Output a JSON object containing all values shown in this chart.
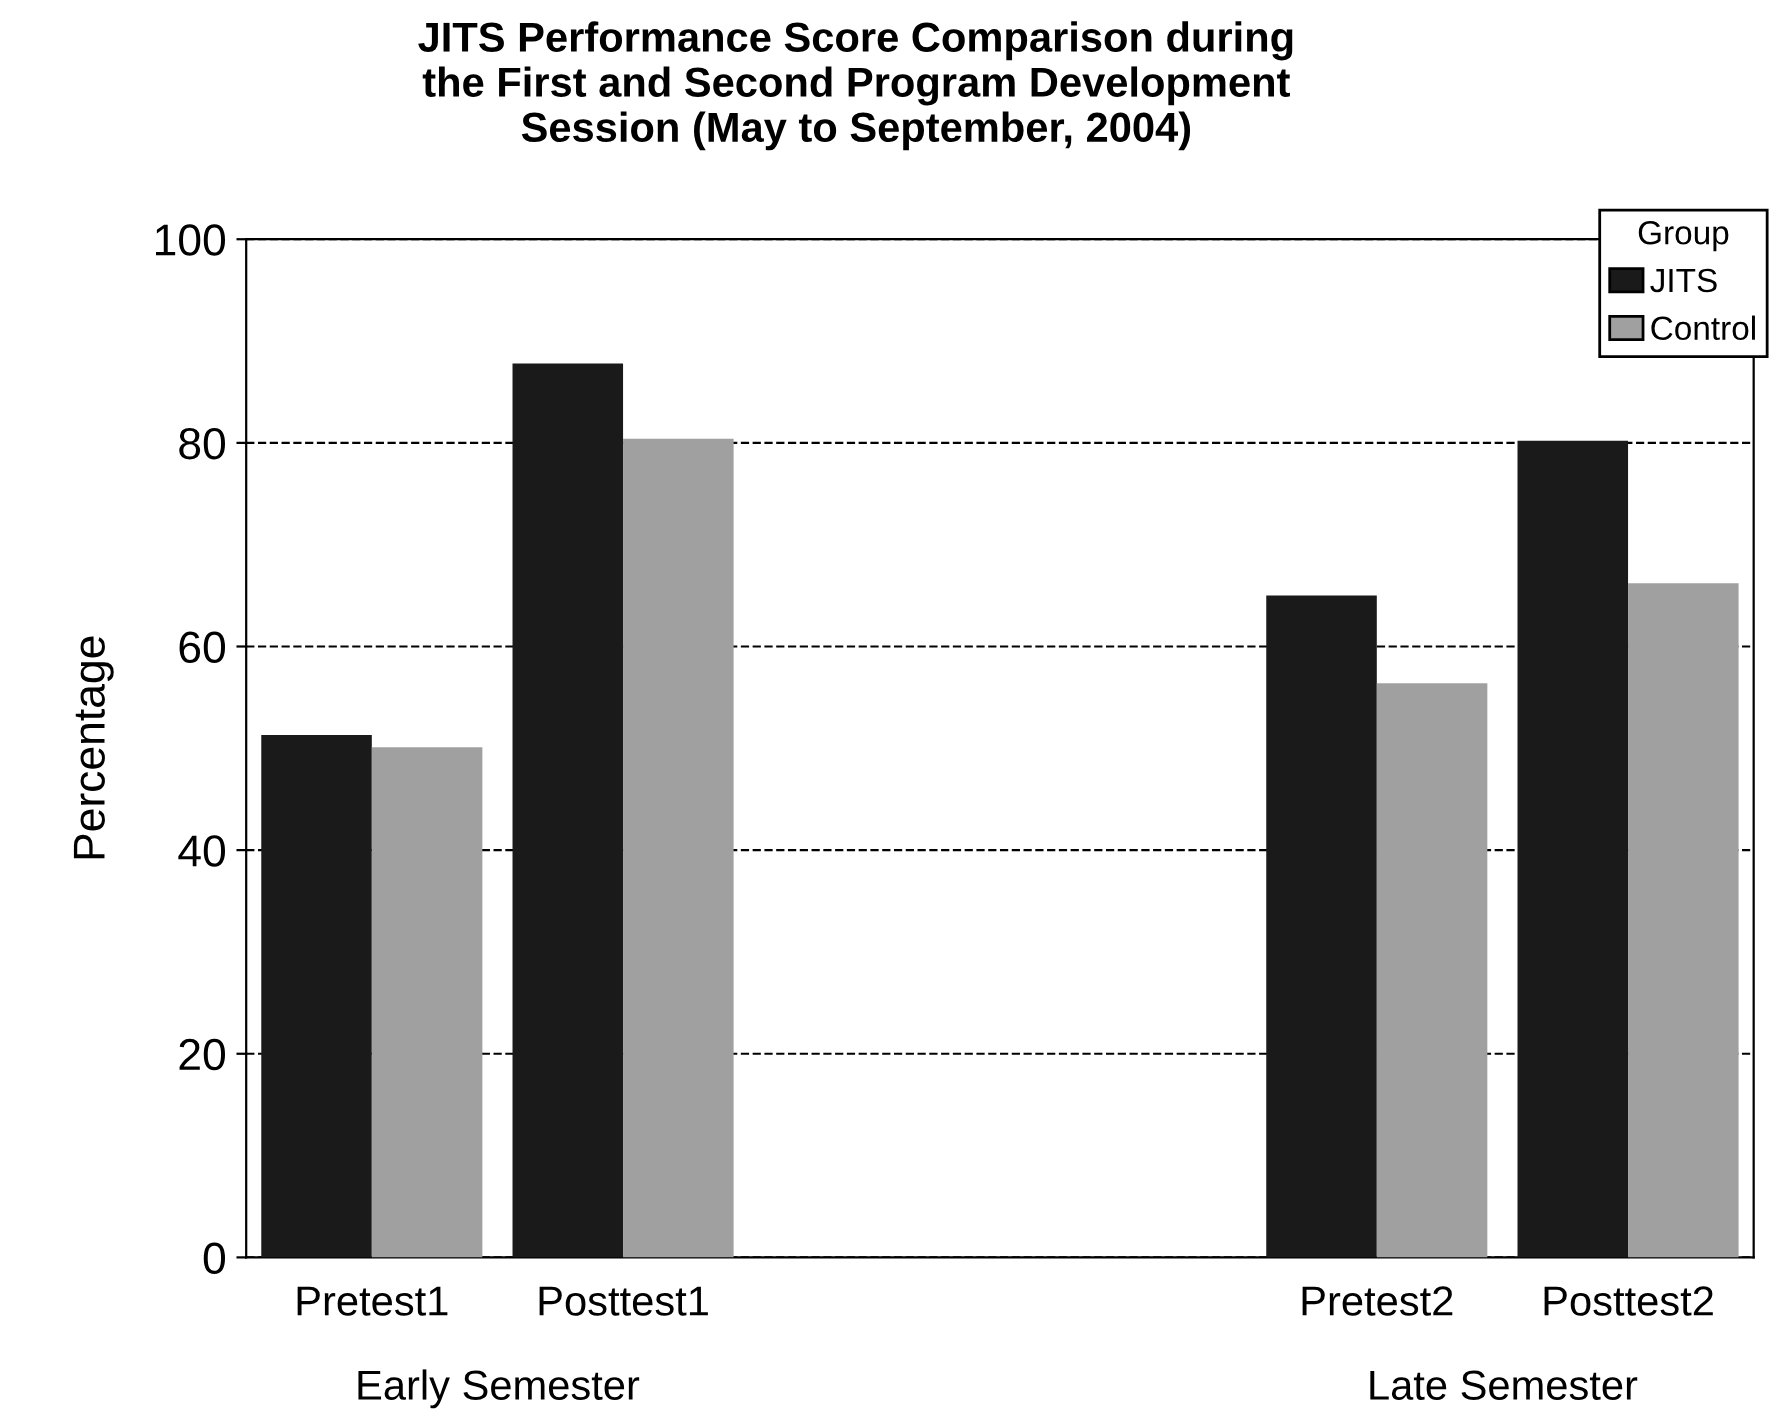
{
  "chart_data": {
    "type": "bar",
    "title": "JITS Performance Score Comparison during\nthe First and Second Program Development\nSession (May to September, 2004)",
    "ylabel": "Percentage",
    "categories": [
      "Pretest1",
      "Posttest1",
      null,
      null,
      "Pretest2",
      "Posttest2"
    ],
    "series": [
      {
        "name": "JITS",
        "color": "#1a1a1a",
        "values": [
          51.3,
          87.8,
          null,
          null,
          65.0,
          80.2
        ]
      },
      {
        "name": "Control",
        "color": "#a0a0a0",
        "values": [
          50.1,
          80.4,
          null,
          null,
          56.4,
          66.2
        ]
      }
    ],
    "ylim": [
      0,
      100
    ],
    "yticks": [
      0,
      20,
      40,
      60,
      80,
      100
    ],
    "grid": "y",
    "legend": "top right",
    "legend_title": "Group",
    "annotations": [
      "Early Semester",
      "Late Semester"
    ]
  }
}
